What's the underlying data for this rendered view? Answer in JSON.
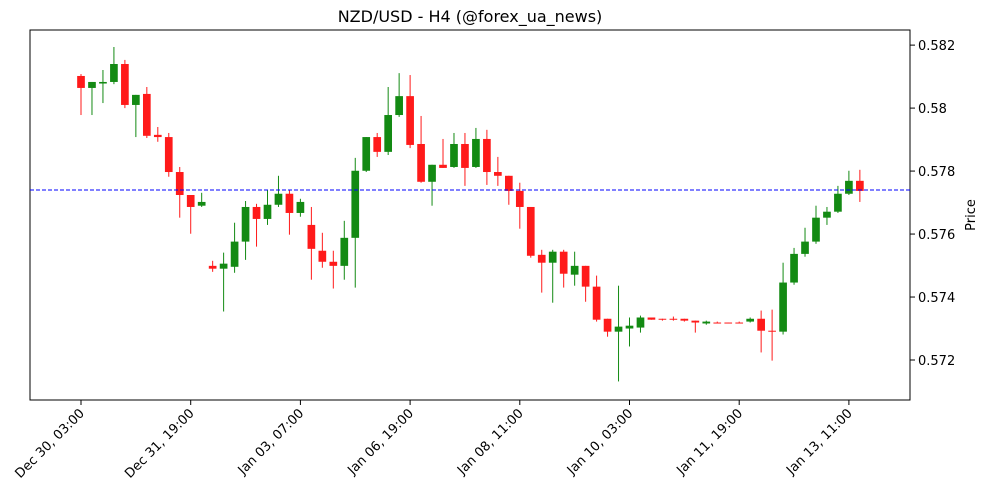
{
  "chart_data": {
    "type": "candlestick",
    "title": "NZD/USD - H4 (@forex_ua_news)",
    "ylabel": "Price",
    "open": [
      0.58102,
      0.58064,
      0.58078,
      0.58083,
      0.5814,
      0.5801,
      0.58045,
      0.57915,
      0.57908,
      0.57797,
      0.57724,
      0.5769,
      0.57499,
      0.5749,
      0.57496,
      0.57576,
      0.57686,
      0.57648,
      0.57693,
      0.57728,
      0.57667,
      0.57629,
      0.57547,
      0.57512,
      0.57499,
      0.57588,
      0.57801,
      0.57908,
      0.57861,
      0.57978,
      0.58038,
      0.57886,
      0.57766,
      0.5782,
      0.57813,
      0.57886,
      0.57813,
      0.57902,
      0.57797,
      0.57785,
      0.57737,
      0.57686,
      0.57534,
      0.57509,
      0.57544,
      0.57471,
      0.57499,
      0.57433,
      0.57331,
      0.5729,
      0.573,
      0.57303,
      0.57335,
      0.57331,
      0.57331,
      0.57331,
      0.57325,
      0.57316,
      0.57319,
      0.57319,
      0.57319,
      0.57322,
      0.57331,
      0.57293,
      0.5729,
      0.57446,
      0.57537,
      0.57576,
      0.57652,
      0.57671,
      0.57728,
      0.57769
    ],
    "high": [
      0.58108,
      0.58083,
      0.58121,
      0.58194,
      0.58153,
      0.58042,
      0.58067,
      0.5794,
      0.57921,
      0.57813,
      0.57724,
      0.57731,
      0.57515,
      0.57541,
      0.57636,
      0.57705,
      0.57696,
      0.5774,
      0.57785,
      0.5774,
      0.57712,
      0.57686,
      0.57604,
      0.57547,
      0.57642,
      0.57842,
      0.57908,
      0.57921,
      0.58067,
      0.58111,
      0.58105,
      0.57975,
      0.5782,
      0.57902,
      0.57921,
      0.57921,
      0.57937,
      0.57931,
      0.57845,
      0.57785,
      0.57763,
      0.57686,
      0.5755,
      0.5755,
      0.5755,
      0.57544,
      0.57499,
      0.57468,
      0.57331,
      0.57436,
      0.57335,
      0.57341,
      0.57335,
      0.57331,
      0.57338,
      0.57331,
      0.57325,
      0.57325,
      0.57322,
      0.57319,
      0.57322,
      0.57335,
      0.57357,
      0.5736,
      0.57509,
      0.57556,
      0.5762,
      0.5769,
      0.57686,
      0.57753,
      0.57801,
      0.57804
    ],
    "low": [
      0.57978,
      0.57978,
      0.58016,
      0.58076,
      0.58,
      0.57908,
      0.57905,
      0.57893,
      0.57782,
      0.57652,
      0.57601,
      0.57686,
      0.5748,
      0.57354,
      0.57477,
      0.57518,
      0.5756,
      0.57629,
      0.57686,
      0.57598,
      0.57655,
      0.57455,
      0.57493,
      0.57427,
      0.57455,
      0.5743,
      0.57797,
      0.57845,
      0.57851,
      0.57972,
      0.57873,
      0.57763,
      0.5769,
      0.5781,
      0.5781,
      0.57753,
      0.5781,
      0.57756,
      0.57753,
      0.57693,
      0.57617,
      0.57525,
      0.57414,
      0.57382,
      0.5743,
      0.57436,
      0.57385,
      0.57322,
      0.57274,
      0.57132,
      0.57243,
      0.57287,
      0.57328,
      0.57325,
      0.57325,
      0.57322,
      0.57287,
      0.57312,
      0.57316,
      0.57316,
      0.57316,
      0.57319,
      0.57224,
      0.57198,
      0.57281,
      0.57439,
      0.57528,
      0.57569,
      0.57629,
      0.57667,
      0.57724,
      0.57702
    ],
    "close": [
      0.58064,
      0.58083,
      0.58083,
      0.5814,
      0.5801,
      0.58042,
      0.57912,
      0.57908,
      0.57797,
      0.57724,
      0.57686,
      0.57702,
      0.5749,
      0.57506,
      0.57576,
      0.57686,
      0.57648,
      0.57693,
      0.57728,
      0.57667,
      0.57702,
      0.57553,
      0.57512,
      0.57499,
      0.57588,
      0.57801,
      0.57908,
      0.57861,
      0.57978,
      0.58038,
      0.57883,
      0.57766,
      0.5782,
      0.5781,
      0.57886,
      0.5781,
      0.57902,
      0.57797,
      0.57785,
      0.57737,
      0.57686,
      0.57531,
      0.57509,
      0.57544,
      0.57474,
      0.57499,
      0.57433,
      0.57328,
      0.5729,
      0.57306,
      0.57309,
      0.57335,
      0.57328,
      0.57328,
      0.57328,
      0.57325,
      0.57319,
      0.57322,
      0.57316,
      0.57316,
      0.57316,
      0.57331,
      0.57293,
      0.5729,
      0.57446,
      0.57537,
      0.57576,
      0.57652,
      0.57671,
      0.57728,
      0.57769,
      0.57737
    ],
    "up_color": "#138a13",
    "down_color": "#ff1a1a",
    "hline": 0.5774,
    "hline_color": "#0000ff",
    "xlim": [
      -4.65,
      75.57
    ],
    "ylim": [
      0.57073,
      0.58248
    ],
    "xticks": [
      {
        "value": 0,
        "label": "Dec 30, 03:00"
      },
      {
        "value": 10,
        "label": "Dec 31, 19:00"
      },
      {
        "value": 20,
        "label": "Jan 03, 07:00"
      },
      {
        "value": 30,
        "label": "Jan 06, 19:00"
      },
      {
        "value": 40,
        "label": "Jan 08, 11:00"
      },
      {
        "value": 50,
        "label": "Jan 10, 03:00"
      },
      {
        "value": 60,
        "label": "Jan 11, 19:00"
      },
      {
        "value": 70,
        "label": "Jan 13, 11:00"
      }
    ],
    "yticks": [
      0.572,
      0.574,
      0.576,
      0.578,
      0.58,
      {
        "value": 0.582,
        "label": "0.582"
      }
    ]
  }
}
